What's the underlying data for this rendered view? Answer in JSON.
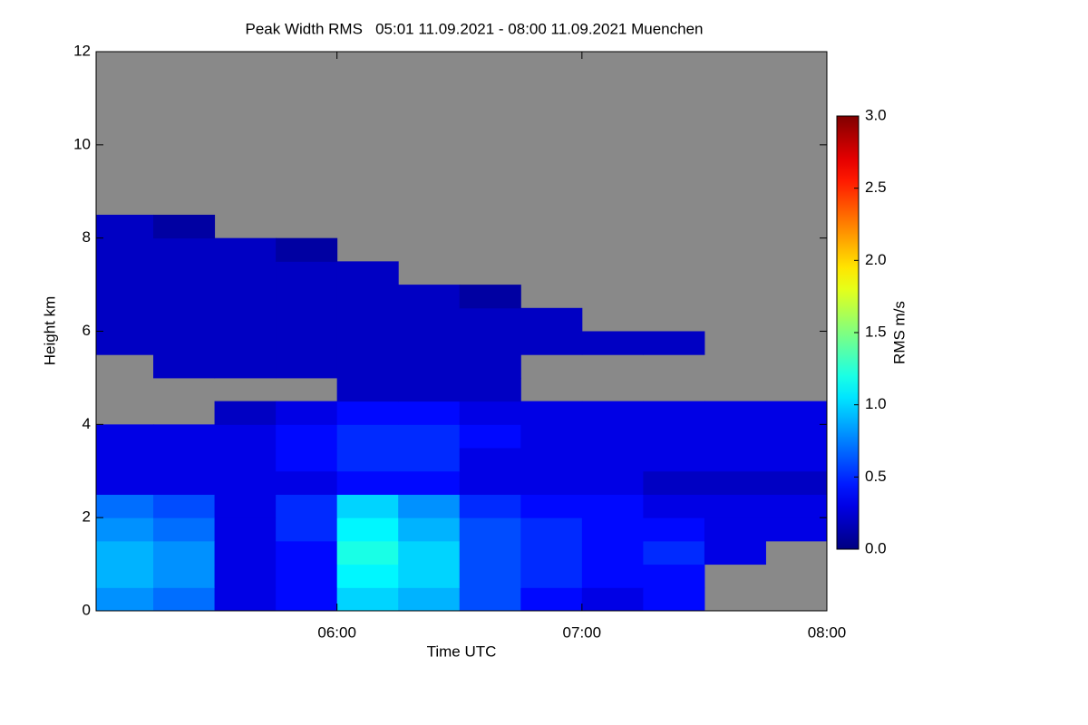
{
  "chart_data": {
    "type": "heatmap",
    "title": "Peak Width RMS   05:01 11.09.2021 - 08:00 11.09.2021 Muenchen",
    "x_label": "Time UTC",
    "y_label": "Height km",
    "colorbar_label": "RMS m/s",
    "colormap": "jet",
    "background_color": "#898989",
    "xlim": [
      "05:01",
      "08:00"
    ],
    "xticks": [
      "06:00",
      "07:00",
      "08:00"
    ],
    "ylim": [
      0,
      12
    ],
    "yticks": [
      0,
      2,
      4,
      6,
      8,
      10,
      12
    ],
    "zlim": [
      0,
      3
    ],
    "zticks": [
      {
        "value": 0,
        "label": "0.0"
      },
      {
        "value": 0.5,
        "label": "0.5"
      },
      {
        "value": 1,
        "label": "1.0"
      },
      {
        "value": 1.5,
        "label": "1.5"
      },
      {
        "value": 2,
        "label": "2.0"
      },
      {
        "value": 2.5,
        "label": "2.5"
      },
      {
        "value": 3,
        "label": "3.0"
      }
    ],
    "x_bins": [
      "05:01",
      "05:15",
      "05:30",
      "05:45",
      "06:00",
      "06:15",
      "06:30",
      "06:45",
      "07:00",
      "07:15",
      "07:30",
      "07:45",
      "08:00"
    ],
    "y_bins": [
      0,
      0.5,
      1,
      1.5,
      2,
      2.5,
      3,
      3.5,
      4,
      4.5,
      5,
      5.5,
      6,
      6.5,
      7,
      7.5,
      8,
      8.5
    ],
    "z": [
      [
        0.8,
        0.7,
        0.3,
        0.4,
        1.0,
        0.9,
        0.6,
        0.4,
        0.3,
        0.4,
        null,
        null
      ],
      [
        0.9,
        0.8,
        0.3,
        0.4,
        1.1,
        1.0,
        0.6,
        0.5,
        0.4,
        0.4,
        null,
        null
      ],
      [
        0.9,
        0.8,
        0.3,
        0.4,
        1.2,
        1.0,
        0.6,
        0.5,
        0.4,
        0.5,
        0.3,
        null
      ],
      [
        0.8,
        0.7,
        0.3,
        0.5,
        1.1,
        0.9,
        0.6,
        0.5,
        0.4,
        0.4,
        0.3,
        0.3
      ],
      [
        0.7,
        0.6,
        0.3,
        0.5,
        1.0,
        0.8,
        0.5,
        0.4,
        0.4,
        0.3,
        0.3,
        0.3
      ],
      [
        0.3,
        0.3,
        0.3,
        0.3,
        0.4,
        0.4,
        0.3,
        0.3,
        0.3,
        0.2,
        0.2,
        0.2
      ],
      [
        0.3,
        0.3,
        0.3,
        0.4,
        0.5,
        0.5,
        0.3,
        0.3,
        0.3,
        0.3,
        0.3,
        0.3
      ],
      [
        0.3,
        0.3,
        0.3,
        0.4,
        0.5,
        0.5,
        0.4,
        0.3,
        0.3,
        0.3,
        0.3,
        0.3
      ],
      [
        null,
        null,
        0.2,
        0.3,
        0.4,
        0.4,
        0.3,
        0.3,
        0.3,
        0.3,
        0.3,
        0.3
      ],
      [
        null,
        null,
        null,
        null,
        0.2,
        0.2,
        0.2,
        null,
        null,
        null,
        null,
        null
      ],
      [
        null,
        0.2,
        0.2,
        0.2,
        0.2,
        0.2,
        0.2,
        null,
        null,
        null,
        null,
        null
      ],
      [
        0.2,
        0.2,
        0.2,
        0.2,
        0.2,
        0.2,
        0.2,
        0.2,
        0.2,
        0.2,
        null,
        null
      ],
      [
        0.2,
        0.2,
        0.2,
        0.2,
        0.2,
        0.2,
        0.2,
        0.2,
        null,
        null,
        null,
        null
      ],
      [
        0.2,
        0.2,
        0.2,
        0.2,
        0.2,
        0.2,
        0.1,
        null,
        null,
        null,
        null,
        null
      ],
      [
        0.2,
        0.2,
        0.2,
        0.2,
        0.2,
        null,
        null,
        null,
        null,
        null,
        null,
        null
      ],
      [
        0.2,
        0.2,
        0.2,
        0.1,
        null,
        null,
        null,
        null,
        null,
        null,
        null,
        null
      ],
      [
        0.2,
        0.1,
        null,
        null,
        null,
        null,
        null,
        null,
        null,
        null,
        null,
        null
      ]
    ]
  }
}
